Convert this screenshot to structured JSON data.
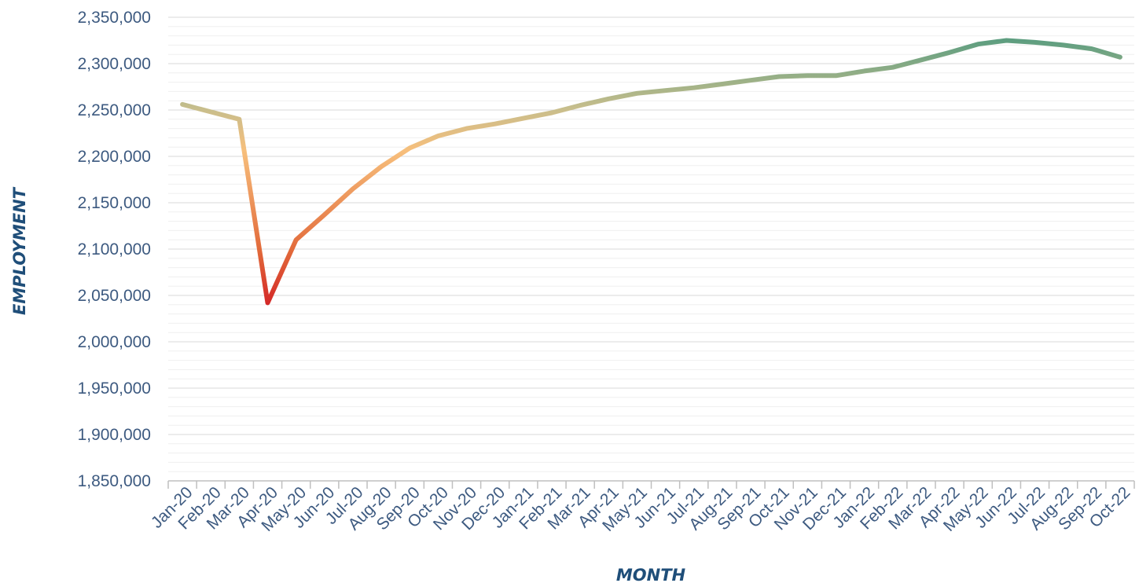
{
  "chart_data": {
    "type": "line",
    "title": "",
    "xlabel": "MONTH",
    "ylabel": "EMPLOYMENT",
    "ylim": [
      1850000,
      2350000
    ],
    "y_ticks": [
      "1,850,000",
      "1,900,000",
      "1,950,000",
      "2,000,000",
      "2,050,000",
      "2,100,000",
      "2,150,000",
      "2,200,000",
      "2,250,000",
      "2,300,000",
      "2,350,000"
    ],
    "grid": true,
    "legend": "none",
    "categories": [
      "Jan-20",
      "Feb-20",
      "Mar-20",
      "Apr-20",
      "May-20",
      "Jun-20",
      "Jul-20",
      "Aug-20",
      "Sep-20",
      "Oct-20",
      "Nov-20",
      "Dec-20",
      "Jan-21",
      "Feb-21",
      "Mar-21",
      "Apr-21",
      "May-21",
      "Jun-21",
      "Jul-21",
      "Aug-21",
      "Sep-21",
      "Oct-21",
      "Nov-21",
      "Dec-21",
      "Jan-22",
      "Feb-22",
      "Mar-22",
      "Apr-22",
      "May-22",
      "Jun-22",
      "Jul-22",
      "Aug-22",
      "Sep-22",
      "Oct-22"
    ],
    "series": [
      {
        "values": [
          2256000,
          2248000,
          2240000,
          2042000,
          2110000,
          2137000,
          2165000,
          2189000,
          2209000,
          2222000,
          2230000,
          2235000,
          2241000,
          2247000,
          2255000,
          2262000,
          2268000,
          2271000,
          2274000,
          2278000,
          2282000,
          2286000,
          2287000,
          2287000,
          2292000,
          2296000,
          2304000,
          2312000,
          2321000,
          2325000,
          2323000,
          2320000,
          2316000,
          2307000
        ]
      }
    ],
    "line_colors": {
      "start": "#c8be8c",
      "peak_light": "#f7bf7c",
      "mid": "#e26a3a",
      "trough": "#d42a28",
      "end": "#5e9e80"
    },
    "gridline_color": "#d9d9d9",
    "minor_gridline_color": "#efefef"
  }
}
